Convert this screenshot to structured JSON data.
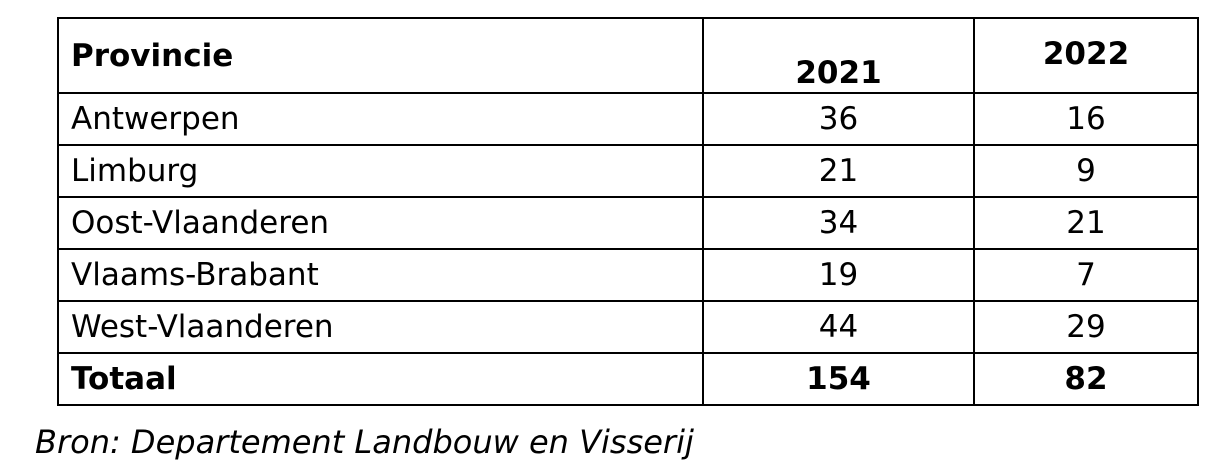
{
  "table": {
    "header": [
      "Provincie",
      "2021",
      "2022"
    ],
    "rows": [
      [
        "Antwerpen",
        36,
        16
      ],
      [
        "Limburg",
        21,
        9
      ],
      [
        "Oost-Vlaanderen",
        34,
        21
      ],
      [
        "Vlaams-Brabant",
        19,
        7
      ],
      [
        "West-Vlaanderen",
        44,
        29
      ]
    ],
    "total": [
      "Totaal",
      154,
      82
    ]
  },
  "source": "Bron: Departement Landbouw en Visserij"
}
